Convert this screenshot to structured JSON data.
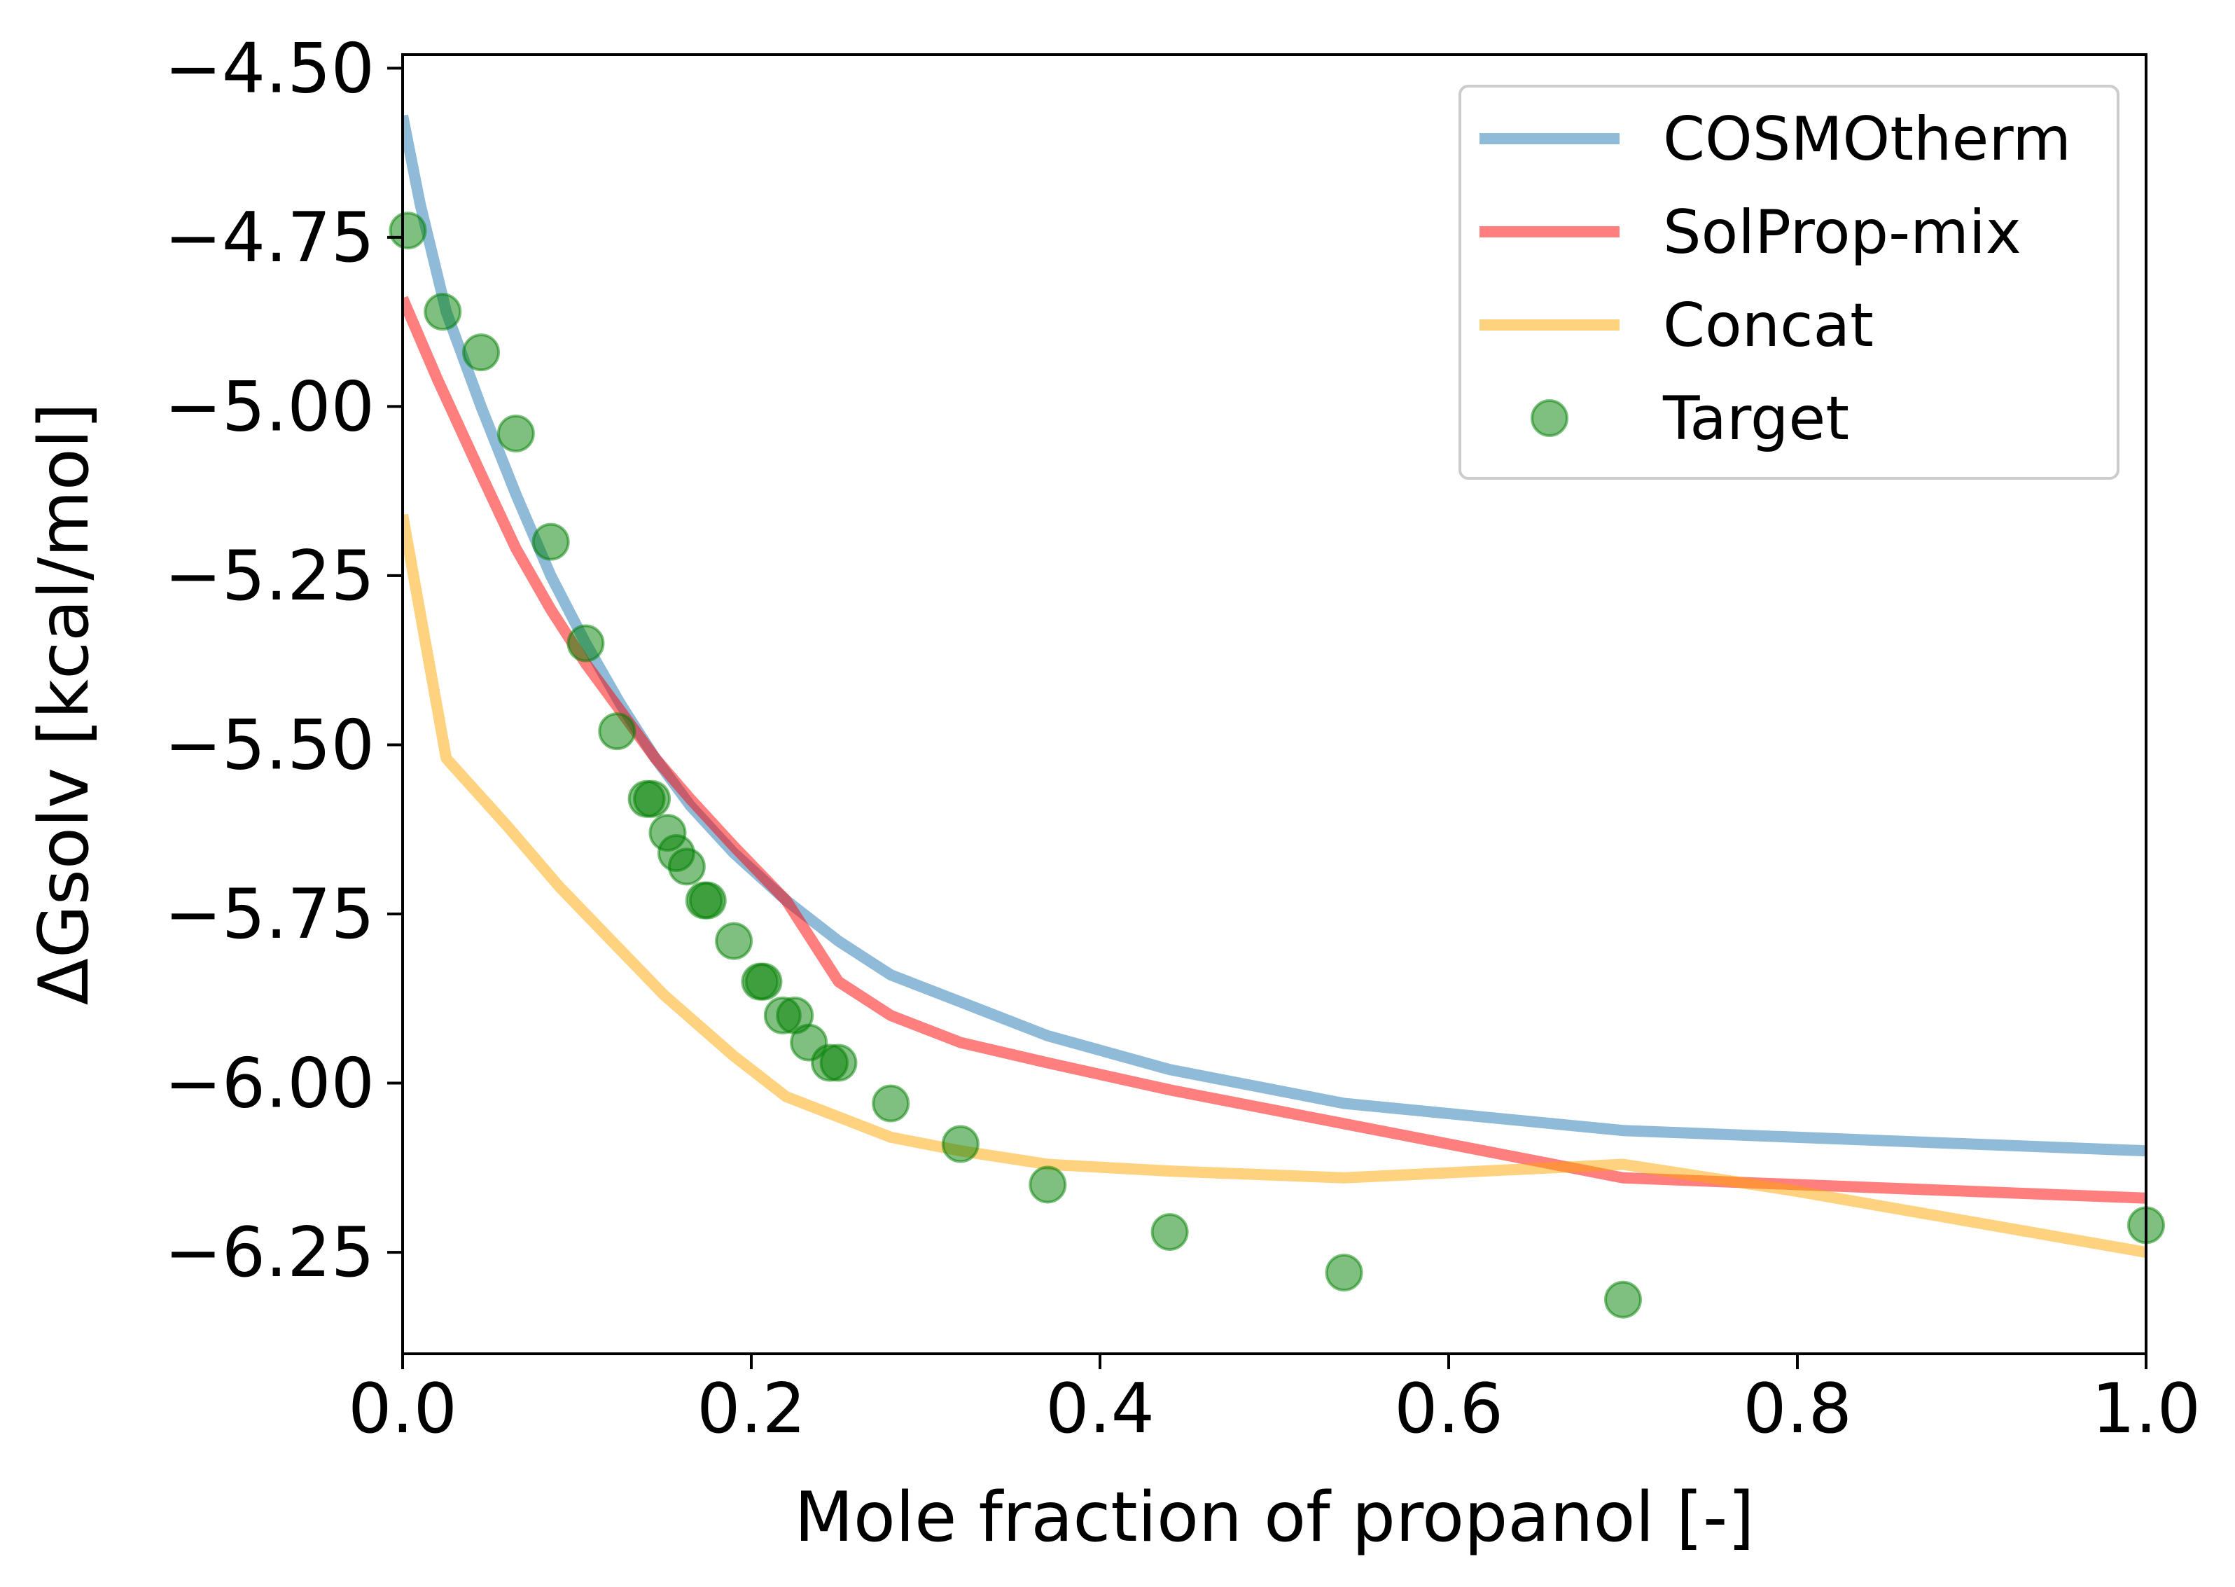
{
  "chart_data": {
    "type": "line",
    "title": "",
    "xlabel": "Mole fraction of propanol [-]",
    "ylabel": "ΔGsolv [kcal/mol]",
    "xlim": [
      0.0,
      1.0
    ],
    "ylim": [
      -6.4,
      -4.48
    ],
    "x_ticks": [
      0.0,
      0.2,
      0.4,
      0.6,
      0.8,
      1.0
    ],
    "x_tick_labels": [
      "0.0",
      "0.2",
      "0.4",
      "0.6",
      "0.8",
      "1.0"
    ],
    "y_ticks": [
      -4.5,
      -4.75,
      -5.0,
      -5.25,
      -5.5,
      -5.75,
      -6.0,
      -6.25
    ],
    "y_tick_labels": [
      "−4.50",
      "−4.75",
      "−5.00",
      "−5.25",
      "−5.50",
      "−5.75",
      "−6.00",
      "−6.25"
    ],
    "legend_position": "top-right",
    "series": [
      {
        "name": "COSMOtherm",
        "kind": "line",
        "color": "#1f77b4",
        "x": [
          0.0,
          0.01,
          0.025,
          0.045,
          0.065,
          0.085,
          0.105,
          0.125,
          0.145,
          0.165,
          0.19,
          0.22,
          0.25,
          0.28,
          0.32,
          0.37,
          0.44,
          0.54,
          0.7,
          1.0
        ],
        "y": [
          -4.57,
          -4.7,
          -4.86,
          -5.0,
          -5.13,
          -5.25,
          -5.35,
          -5.44,
          -5.52,
          -5.59,
          -5.66,
          -5.73,
          -5.79,
          -5.84,
          -5.88,
          -5.93,
          -5.98,
          -6.03,
          -6.07,
          -6.1
        ]
      },
      {
        "name": "SolProp-mix",
        "kind": "line",
        "color": "#ff0000",
        "x": [
          0.0,
          0.02,
          0.045,
          0.065,
          0.085,
          0.105,
          0.125,
          0.145,
          0.165,
          0.19,
          0.22,
          0.25,
          0.28,
          0.32,
          0.37,
          0.44,
          0.54,
          0.7,
          1.0
        ],
        "y": [
          -4.84,
          -4.96,
          -5.1,
          -5.21,
          -5.3,
          -5.38,
          -5.45,
          -5.52,
          -5.58,
          -5.65,
          -5.73,
          -5.85,
          -5.9,
          -5.94,
          -5.97,
          -6.01,
          -6.06,
          -6.14,
          -6.17
        ]
      },
      {
        "name": "Concat",
        "kind": "line",
        "color": "#ffa500",
        "x": [
          0.0,
          0.025,
          0.06,
          0.09,
          0.12,
          0.15,
          0.19,
          0.22,
          0.25,
          0.28,
          0.32,
          0.37,
          0.44,
          0.54,
          0.7,
          0.8,
          1.0
        ],
        "y": [
          -5.16,
          -5.52,
          -5.62,
          -5.71,
          -5.79,
          -5.87,
          -5.96,
          -6.02,
          -6.05,
          -6.08,
          -6.1,
          -6.12,
          -6.13,
          -6.14,
          -6.12,
          -6.16,
          -6.25
        ]
      },
      {
        "name": "Target",
        "kind": "scatter",
        "color": "#008000",
        "x": [
          0.003,
          0.023,
          0.045,
          0.065,
          0.085,
          0.105,
          0.123,
          0.14,
          0.143,
          0.152,
          0.157,
          0.163,
          0.173,
          0.175,
          0.19,
          0.205,
          0.207,
          0.218,
          0.225,
          0.233,
          0.245,
          0.25,
          0.28,
          0.32,
          0.37,
          0.44,
          0.54,
          0.7,
          1.0
        ],
        "y": [
          -4.74,
          -4.86,
          -4.92,
          -5.04,
          -5.2,
          -5.35,
          -5.48,
          -5.58,
          -5.58,
          -5.63,
          -5.66,
          -5.68,
          -5.73,
          -5.73,
          -5.79,
          -5.85,
          -5.85,
          -5.9,
          -5.9,
          -5.94,
          -5.97,
          -5.97,
          -6.03,
          -6.09,
          -6.15,
          -6.22,
          -6.28,
          -6.32,
          -6.21
        ]
      }
    ]
  }
}
